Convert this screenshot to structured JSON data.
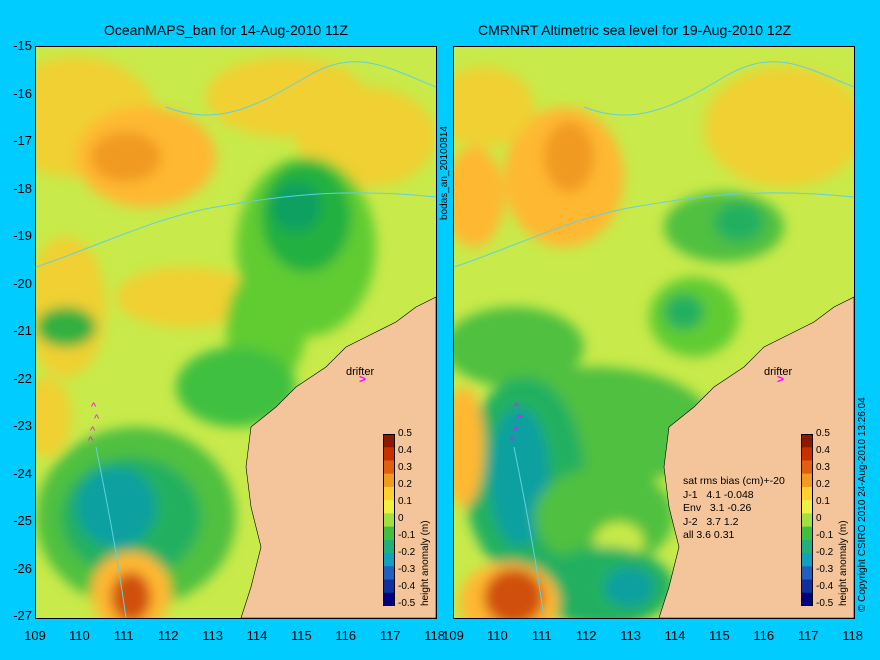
{
  "left_panel": {
    "title": "OceanMAPS_ban for 14-Aug-2010 11Z",
    "drifter_label": "drifter",
    "colorbar_label": "height anomaly (m)"
  },
  "right_panel": {
    "title": "CMRNRT Altimetric sea level  for 19-Aug-2010 12Z",
    "drifter_label": "drifter",
    "colorbar_label": "height anomaly (m)",
    "stats_text": "sat rms bias (cm)+-20\nJ-1   4.1 -0.048\nEnv   3.1 -0.26\nJ-2   3.7 1.2\nall 3.6 0.31"
  },
  "side_label": "bodas_an_20100814",
  "copyright": "© Copyright CSIRO 2010    24-Aug-2010 13:26:04",
  "latitude_ticks": [
    "-15",
    "-16",
    "-17",
    "-18",
    "-19",
    "-20",
    "-21",
    "-22",
    "-23",
    "-24",
    "-25",
    "-26",
    "-27"
  ],
  "longitude_ticks": [
    "109",
    "110",
    "111",
    "112",
    "113",
    "114",
    "115",
    "116",
    "117",
    "118"
  ],
  "colorbar_ticks": [
    "0.5",
    "0.4",
    "0.3",
    "0.2",
    "0.1",
    "0",
    "-0.1",
    "-0.2",
    "-0.3",
    "-0.4",
    "-0.5"
  ],
  "colors": {
    "background": "#00ccff",
    "land": "#f4c49a",
    "sea_base": "#c8ea4a",
    "drifter": "#ff00ff",
    "coastline_contour": "#60d0e0"
  },
  "chart_data": {
    "type": "heatmap",
    "x_axis": "longitude",
    "y_axis": "latitude",
    "xlim": [
      109,
      118
    ],
    "ylim": [
      -27,
      -15
    ],
    "colorbar_range": [
      -0.5,
      0.5
    ],
    "colorbar_unit": "height anomaly (m)"
  }
}
